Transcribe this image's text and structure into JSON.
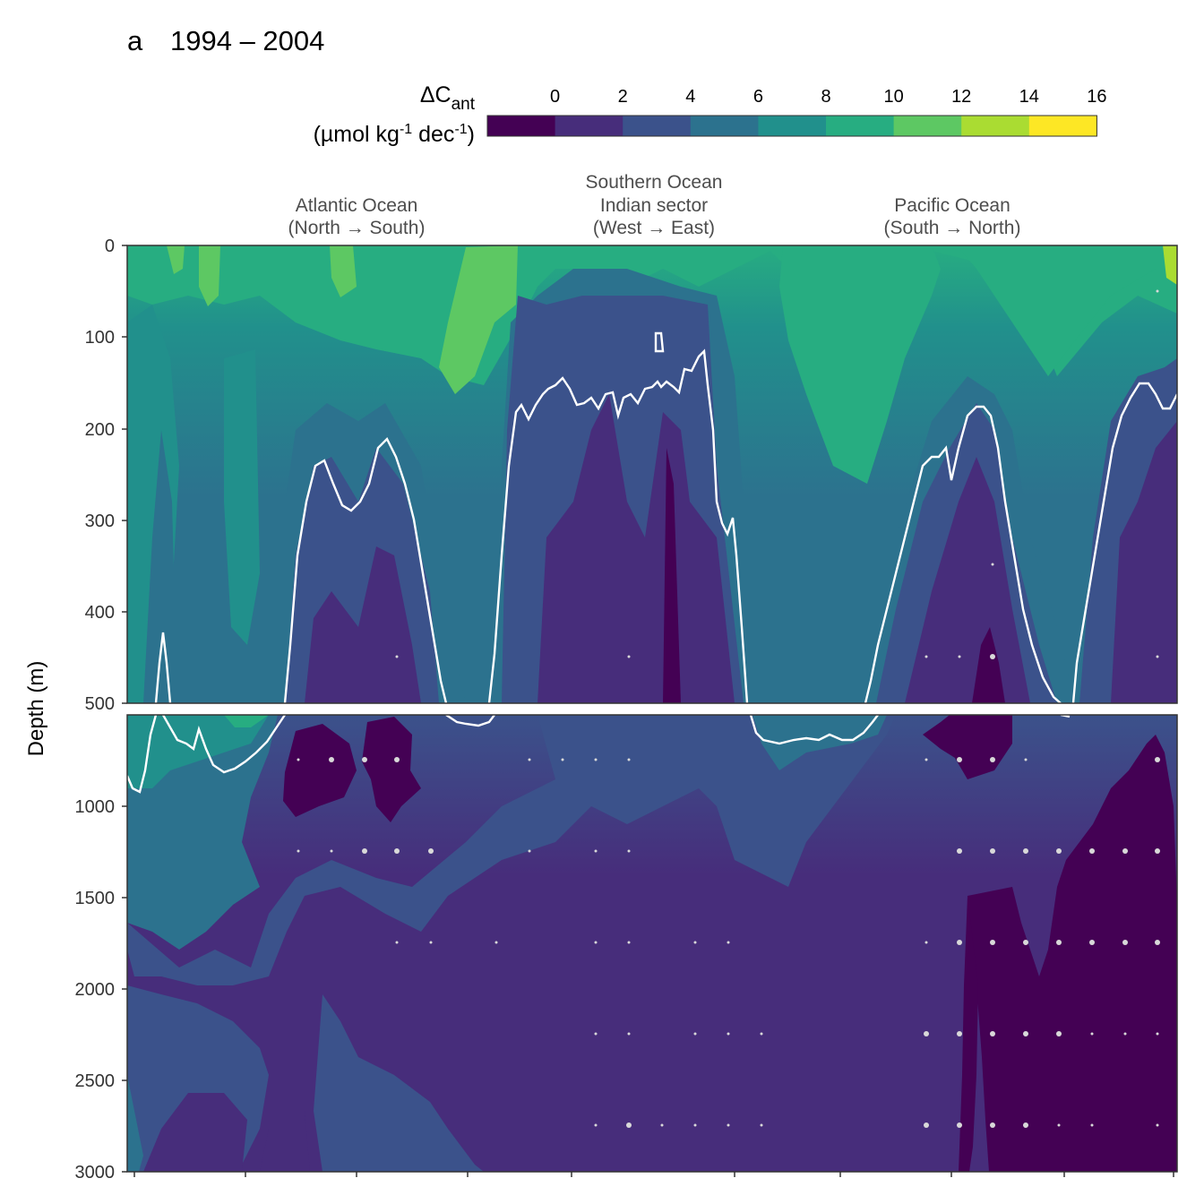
{
  "panel_label": "a",
  "title": "1994 – 2004",
  "legend": {
    "delta": "ΔC",
    "sub": "ant",
    "unit_open": "(µmol kg",
    "unit_exp1": "-1",
    "unit_mid": " dec",
    "unit_exp2": "-1",
    "unit_close": ")",
    "ticks": [
      "0",
      "2",
      "4",
      "6",
      "8",
      "10",
      "12",
      "14",
      "16"
    ],
    "colors": [
      "#440154",
      "#472D7B",
      "#3B528B",
      "#2C728E",
      "#21908C",
      "#27AD81",
      "#5DC863",
      "#AADC32",
      "#FDE725"
    ]
  },
  "sections": [
    {
      "line1": "",
      "line2": "Atlantic Ocean",
      "line3": "(North → South)"
    },
    {
      "line1": "Southern Ocean",
      "line2": "Indian sector",
      "line3": "(West → East)"
    },
    {
      "line1": "",
      "line2": "Pacific Ocean",
      "line3": "(South → North)"
    }
  ],
  "chart_data": {
    "type": "heatmap",
    "ylabel": "Depth (m)",
    "y_ticks_upper": [
      "0",
      "100",
      "200",
      "300",
      "400",
      "500"
    ],
    "y_ticks_lower": [
      "1000",
      "1500",
      "2000",
      "2500",
      "3000"
    ],
    "upper_ylim": [
      0,
      500
    ],
    "lower_ylim": [
      500,
      3000
    ],
    "white_isoline": "ΔCant = 5 (approx.)",
    "background_levels": {
      "upper_surface": 10,
      "upper_deep": 5,
      "lower_top": 4,
      "lower_bottom": 2
    }
  }
}
